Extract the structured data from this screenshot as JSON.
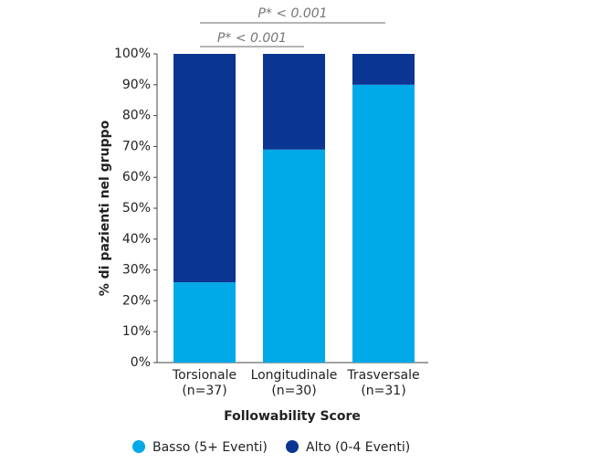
{
  "chart_data": {
    "type": "stacked-bar",
    "categories": [
      "Torsionale\n(n=37)",
      "Longitudinale\n(n=30)",
      "Trasversale\n(n=31)"
    ],
    "series": [
      {
        "name": "Basso (5+ Eventi)",
        "color": "#00a9e8",
        "values": [
          26,
          69,
          90
        ]
      },
      {
        "name": "Alto (0-4 Eventi)",
        "color": "#0a3592",
        "values": [
          74,
          31,
          10
        ]
      }
    ],
    "xlabel": "Followability Score",
    "ylabel": "% di pazienti nel gruppo",
    "ylim": [
      0,
      100
    ],
    "yticks": [
      {
        "value": 0,
        "label": "0%"
      },
      {
        "value": 10,
        "label": "10%"
      },
      {
        "value": 20,
        "label": "20%"
      },
      {
        "value": 30,
        "label": "30%"
      },
      {
        "value": 40,
        "label": "40%"
      },
      {
        "value": 50,
        "label": "50%"
      },
      {
        "value": 60,
        "label": "60%"
      },
      {
        "value": 70,
        "label": "70%"
      },
      {
        "value": 80,
        "label": "80%"
      },
      {
        "value": 90,
        "label": "90%"
      },
      {
        "value": 100,
        "label": "100%"
      }
    ],
    "annotations": [
      "P* < 0.001",
      "P* < 0.001"
    ],
    "legend": "bottom"
  }
}
